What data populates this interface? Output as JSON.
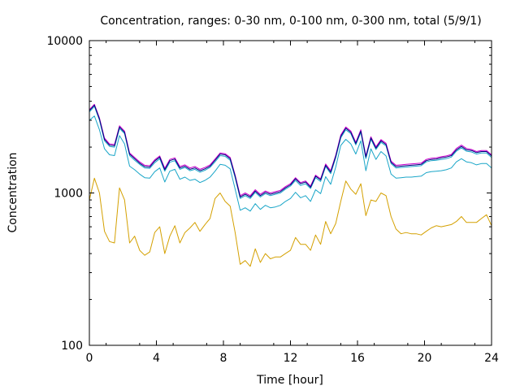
{
  "chart_data": {
    "type": "line",
    "title": "Concentration, ranges: 0-30 nm, 0-100 nm, 0-300 nm, total (5/9/1)",
    "xlabel": "Time [hour]",
    "ylabel": "Concentration",
    "xlim": [
      0,
      24
    ],
    "ylim": [
      100,
      10000
    ],
    "yscale": "log",
    "grid": false,
    "legend": "none",
    "xticks": [
      0,
      4,
      8,
      12,
      16,
      20,
      24
    ],
    "xtick_labels": [
      "0",
      "4",
      "8",
      "12",
      "16",
      "20",
      "24"
    ],
    "yticks": [
      100,
      1000,
      10000
    ],
    "ytick_labels": [
      "100",
      "1000",
      "10000"
    ],
    "x": [
      0,
      0.3,
      0.6,
      0.9,
      1.2,
      1.5,
      1.8,
      2.1,
      2.4,
      2.7,
      3.0,
      3.3,
      3.6,
      3.9,
      4.2,
      4.5,
      4.8,
      5.1,
      5.4,
      5.7,
      6.0,
      6.3,
      6.6,
      6.9,
      7.2,
      7.5,
      7.8,
      8.1,
      8.4,
      8.7,
      9.0,
      9.3,
      9.6,
      9.9,
      10.2,
      10.5,
      10.8,
      11.1,
      11.4,
      11.7,
      12.0,
      12.3,
      12.6,
      12.9,
      13.2,
      13.5,
      13.8,
      14.1,
      14.4,
      14.7,
      15.0,
      15.3,
      15.6,
      15.9,
      16.2,
      16.5,
      16.8,
      17.1,
      17.4,
      17.7,
      18.0,
      18.3,
      18.6,
      18.9,
      19.2,
      19.5,
      19.8,
      20.1,
      20.4,
      20.7,
      21.0,
      21.3,
      21.6,
      21.9,
      22.2,
      22.5,
      22.8,
      23.1,
      23.4,
      23.7,
      24.0
    ],
    "series": [
      {
        "color": "#d4a000",
        "values": [
          900,
          1250,
          1000,
          560,
          480,
          470,
          1080,
          900,
          470,
          520,
          420,
          390,
          410,
          550,
          600,
          400,
          520,
          610,
          470,
          550,
          590,
          640,
          560,
          620,
          680,
          920,
          1000,
          880,
          820,
          550,
          340,
          360,
          330,
          430,
          350,
          400,
          370,
          380,
          380,
          400,
          420,
          510,
          460,
          460,
          420,
          530,
          460,
          650,
          540,
          630,
          880,
          1200,
          1060,
          980,
          1150,
          710,
          900,
          880,
          1000,
          960,
          700,
          580,
          540,
          550,
          540,
          540,
          530,
          560,
          590,
          610,
          600,
          610,
          620,
          650,
          700,
          640,
          640,
          640,
          680,
          720,
          610
        ]
      },
      {
        "color": "#1aa6c8",
        "values": [
          3000,
          3200,
          2600,
          1950,
          1780,
          1760,
          2380,
          2100,
          1500,
          1420,
          1330,
          1260,
          1250,
          1380,
          1460,
          1180,
          1390,
          1430,
          1230,
          1270,
          1210,
          1230,
          1170,
          1210,
          1270,
          1390,
          1540,
          1520,
          1440,
          1060,
          770,
          800,
          760,
          850,
          780,
          830,
          800,
          810,
          830,
          880,
          920,
          1010,
          930,
          960,
          880,
          1050,
          990,
          1280,
          1140,
          1480,
          2050,
          2250,
          2100,
          1800,
          2200,
          1400,
          1950,
          1660,
          1870,
          1750,
          1330,
          1250,
          1260,
          1270,
          1270,
          1280,
          1290,
          1360,
          1380,
          1390,
          1400,
          1420,
          1460,
          1600,
          1680,
          1600,
          1580,
          1530,
          1560,
          1560,
          1460
        ]
      },
      {
        "color": "#1aa6c8",
        "values": [
          3400,
          3700,
          3000,
          2200,
          2020,
          2000,
          2650,
          2450,
          1760,
          1640,
          1540,
          1460,
          1450,
          1580,
          1680,
          1390,
          1590,
          1630,
          1430,
          1470,
          1400,
          1430,
          1370,
          1410,
          1470,
          1600,
          1760,
          1740,
          1640,
          1260,
          920,
          960,
          920,
          1010,
          940,
          990,
          960,
          980,
          1000,
          1060,
          1110,
          1210,
          1120,
          1150,
          1070,
          1260,
          1190,
          1490,
          1340,
          1700,
          2300,
          2600,
          2450,
          2070,
          2500,
          1680,
          2250,
          1930,
          2150,
          2040,
          1560,
          1460,
          1470,
          1480,
          1490,
          1500,
          1510,
          1600,
          1630,
          1640,
          1660,
          1680,
          1720,
          1880,
          1980,
          1880,
          1860,
          1800,
          1830,
          1830,
          1710
        ]
      },
      {
        "color": "#cc00cc",
        "values": [
          3520,
          3820,
          3110,
          2290,
          2100,
          2080,
          2760,
          2550,
          1830,
          1710,
          1600,
          1520,
          1510,
          1650,
          1750,
          1450,
          1660,
          1700,
          1490,
          1530,
          1460,
          1490,
          1430,
          1470,
          1530,
          1670,
          1830,
          1810,
          1710,
          1310,
          960,
          1000,
          960,
          1050,
          980,
          1030,
          1000,
          1020,
          1040,
          1100,
          1150,
          1260,
          1170,
          1200,
          1110,
          1310,
          1240,
          1550,
          1400,
          1770,
          2400,
          2710,
          2550,
          2150,
          2600,
          1750,
          2340,
          2010,
          2240,
          2120,
          1620,
          1520,
          1530,
          1540,
          1550,
          1560,
          1570,
          1660,
          1690,
          1700,
          1730,
          1750,
          1790,
          1960,
          2060,
          1960,
          1930,
          1870,
          1900,
          1900,
          1780
        ]
      },
      {
        "color": "#000080",
        "values": [
          3470,
          3770,
          3060,
          2250,
          2060,
          2040,
          2710,
          2500,
          1800,
          1680,
          1570,
          1490,
          1480,
          1620,
          1720,
          1420,
          1630,
          1670,
          1460,
          1500,
          1430,
          1460,
          1400,
          1440,
          1500,
          1640,
          1800,
          1780,
          1680,
          1290,
          940,
          980,
          940,
          1030,
          960,
          1010,
          980,
          1000,
          1020,
          1080,
          1130,
          1240,
          1150,
          1180,
          1090,
          1290,
          1220,
          1520,
          1370,
          1740,
          2350,
          2660,
          2500,
          2110,
          2550,
          1720,
          2300,
          1970,
          2200,
          2080,
          1590,
          1490,
          1500,
          1510,
          1520,
          1530,
          1540,
          1630,
          1660,
          1670,
          1700,
          1720,
          1760,
          1920,
          2020,
          1920,
          1900,
          1840,
          1870,
          1870,
          1750
        ]
      }
    ]
  }
}
